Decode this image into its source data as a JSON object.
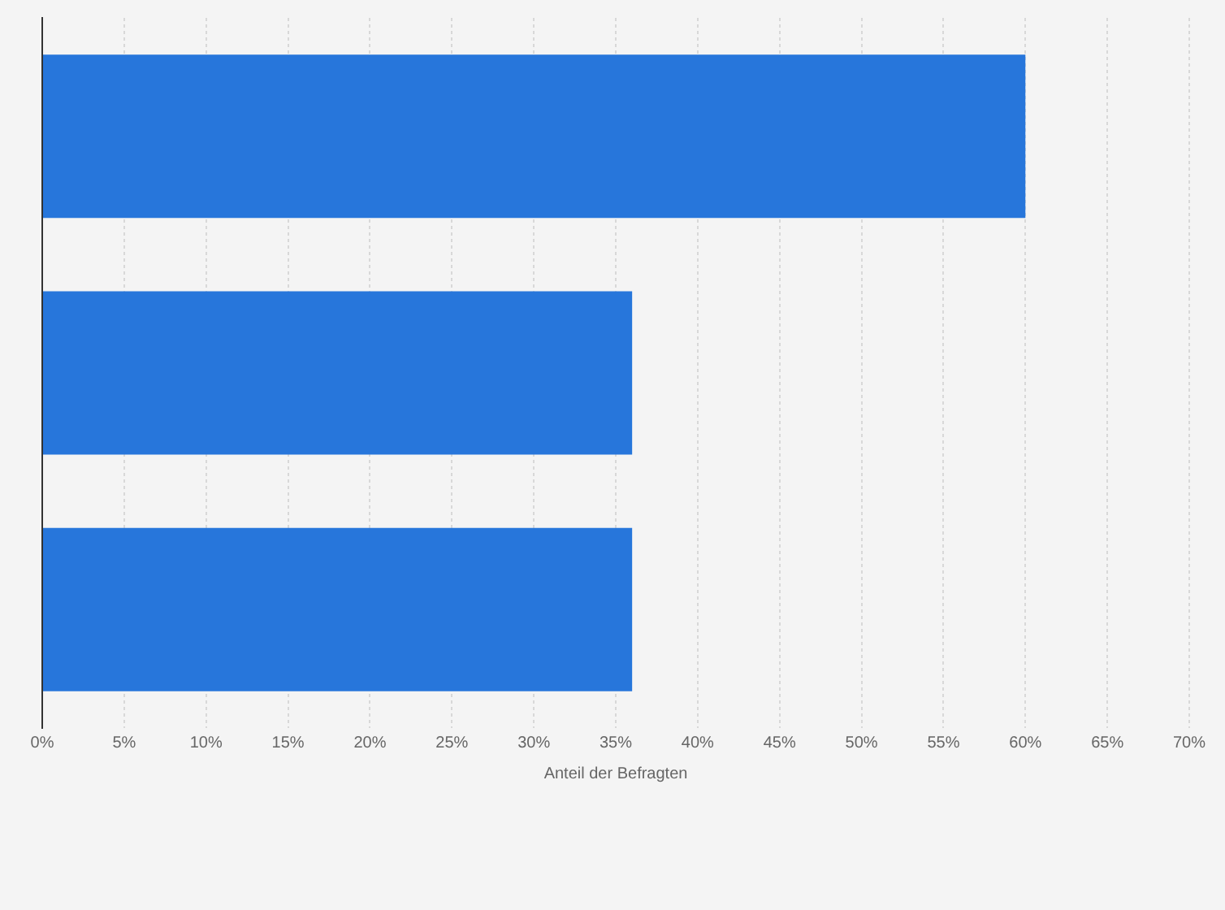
{
  "chart_data": {
    "type": "bar",
    "orientation": "horizontal",
    "categories": [
      null,
      null,
      null
    ],
    "values": [
      60,
      36,
      36
    ],
    "color": "#2776db",
    "xlabel": "Anteil der Befragten",
    "xlim": [
      0,
      70
    ],
    "xticks": [
      {
        "value": 0,
        "label": "0%"
      },
      {
        "value": 5,
        "label": "5%"
      },
      {
        "value": 10,
        "label": "10%"
      },
      {
        "value": 15,
        "label": "15%"
      },
      {
        "value": 20,
        "label": "20%"
      },
      {
        "value": 25,
        "label": "25%"
      },
      {
        "value": 30,
        "label": "30%"
      },
      {
        "value": 35,
        "label": "35%"
      },
      {
        "value": 40,
        "label": "40%"
      },
      {
        "value": 45,
        "label": "45%"
      },
      {
        "value": 50,
        "label": "50%"
      },
      {
        "value": 55,
        "label": "55%"
      },
      {
        "value": 60,
        "label": "60%"
      },
      {
        "value": 65,
        "label": "65%"
      },
      {
        "value": 70,
        "label": "70%"
      }
    ],
    "grid": "x",
    "legend": false
  }
}
